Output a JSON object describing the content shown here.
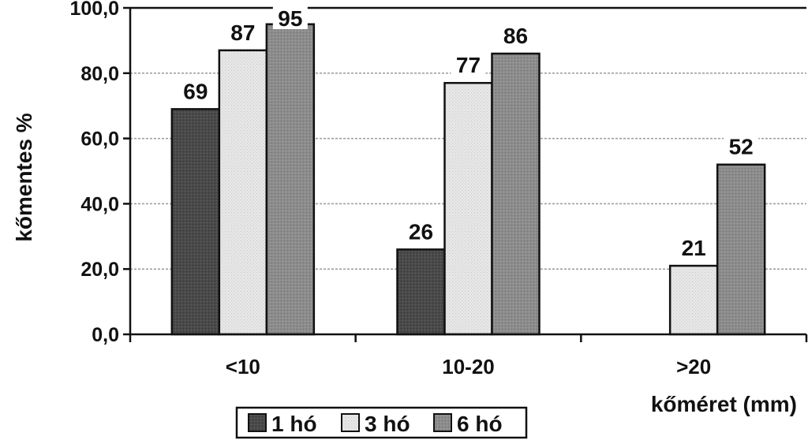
{
  "chart_data": {
    "type": "bar",
    "categories": [
      "<10",
      "10-20",
      ">20"
    ],
    "series": [
      {
        "name": "1 hó",
        "values": [
          69,
          26,
          null
        ],
        "labels": [
          "69",
          "26",
          ""
        ]
      },
      {
        "name": "3 hó",
        "values": [
          87,
          77,
          21
        ],
        "labels": [
          "87",
          "77",
          "21"
        ]
      },
      {
        "name": "6 hó",
        "values": [
          95,
          86,
          52
        ],
        "labels": [
          "95",
          "86",
          "52"
        ]
      }
    ],
    "colors": [
      "#4a4a4a",
      "#e6e6e6",
      "#8c8c8c"
    ],
    "ylabel": "kőmentes %",
    "xlabel": "kőméret (mm)",
    "ylim": [
      0,
      100
    ],
    "yticks": [
      "0,0",
      "20,0",
      "40,0",
      "60,0",
      "80,0",
      "100,0"
    ],
    "grid": true,
    "legend_position": "bottom"
  }
}
